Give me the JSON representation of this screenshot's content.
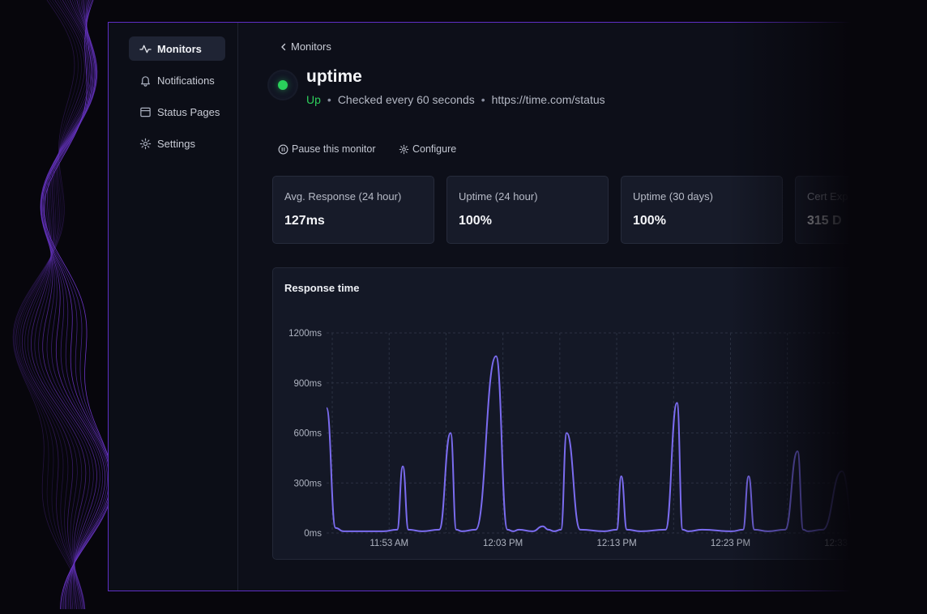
{
  "sidebar": {
    "items": [
      {
        "label": "Monitors",
        "icon": "activity-icon",
        "active": true
      },
      {
        "label": "Notifications",
        "icon": "bell-icon",
        "active": false
      },
      {
        "label": "Status Pages",
        "icon": "browser-window-icon",
        "active": false
      },
      {
        "label": "Settings",
        "icon": "gear-icon",
        "active": false
      }
    ]
  },
  "header": {
    "back_label": "Monitors",
    "monitor_name": "uptime",
    "status": "Up",
    "check_interval": "Checked every 60 seconds",
    "url": "https://time.com/status"
  },
  "actions": {
    "pause_label": "Pause this monitor",
    "configure_label": "Configure"
  },
  "stats": [
    {
      "label": "Avg. Response (24 hour)",
      "value": "127ms"
    },
    {
      "label": "Uptime (24 hour)",
      "value": "100%"
    },
    {
      "label": "Uptime (30 days)",
      "value": "100%"
    },
    {
      "label": "Cert Exp",
      "value": "315 D"
    }
  ],
  "colors": {
    "accent": "#5e2ec6",
    "status_up": "#2ecf5c",
    "line": "#7b6cf0"
  },
  "chart_data": {
    "type": "line",
    "title": "Response time",
    "y_ticks": [
      "1200ms",
      "900ms",
      "600ms",
      "300ms",
      "0ms"
    ],
    "x_ticks": [
      "11:53 AM",
      "12:03 PM",
      "12:13 PM",
      "12:23 PM",
      "12:33 PM"
    ],
    "ylim": [
      0,
      1200
    ],
    "xlim_minutes": [
      0,
      48
    ],
    "grid": true,
    "series": [
      {
        "x": [
          0,
          0.8,
          1.5,
          5,
          6.2,
          6.7,
          7.2,
          8.4,
          9.9,
          10.9,
          11.4,
          11.9,
          13.1,
          14.9,
          15.9,
          16.4,
          16.9,
          18.1,
          19.0,
          19.5,
          20.0,
          20.6,
          21.1,
          22.3,
          24.4,
          25.5,
          25.9,
          26.4,
          27.6,
          29.8,
          30.8,
          31.3,
          31.8,
          33.0,
          35.6,
          36.6,
          37.1,
          37.6,
          38.8,
          40.3,
          41.4,
          41.9,
          42.3,
          43.6,
          45.3,
          46.4,
          46.9,
          47.4,
          48
        ],
        "y": [
          750,
          30,
          10,
          10,
          20,
          400,
          20,
          10,
          20,
          600,
          20,
          10,
          20,
          1060,
          20,
          10,
          20,
          10,
          40,
          20,
          10,
          20,
          600,
          20,
          10,
          20,
          340,
          20,
          10,
          20,
          780,
          20,
          10,
          20,
          10,
          20,
          340,
          20,
          10,
          20,
          490,
          20,
          10,
          20,
          370,
          20,
          10,
          20,
          10
        ]
      }
    ]
  }
}
